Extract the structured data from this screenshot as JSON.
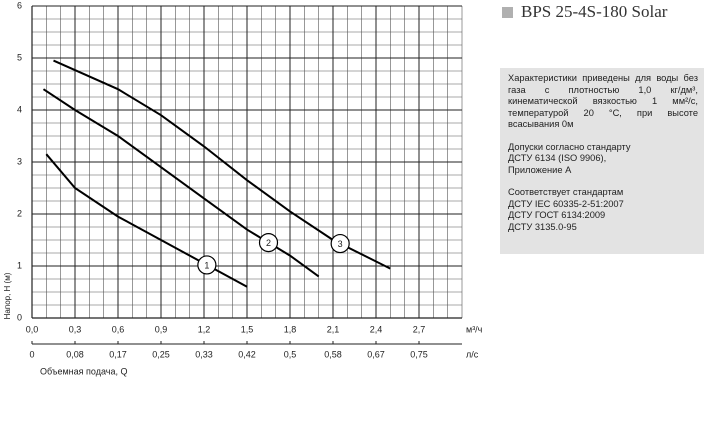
{
  "chart_data": {
    "type": "line",
    "y_label": "Напор, H (м)",
    "x_label": "Объемная подача, Q",
    "x_unit": "м³/ч",
    "x2_unit": "л/с",
    "xlim": [
      0,
      3.0
    ],
    "ylim": [
      0,
      6
    ],
    "xticks": [
      {
        "value": 0,
        "label": "0,0"
      },
      {
        "value": 0.3,
        "label": "0,3"
      },
      {
        "value": 0.6,
        "label": "0,6"
      },
      {
        "value": 0.9,
        "label": "0,9"
      },
      {
        "value": 1.2,
        "label": "1,2"
      },
      {
        "value": 1.5,
        "label": "1,5"
      },
      {
        "value": 1.8,
        "label": "1,8"
      },
      {
        "value": 2.1,
        "label": "2,1"
      },
      {
        "value": 2.4,
        "label": "2,4"
      },
      {
        "value": 2.7,
        "label": "2,7"
      }
    ],
    "x2ticks": [
      {
        "value": 0,
        "label": "0"
      },
      {
        "value": 0.3,
        "label": "0,08"
      },
      {
        "value": 0.6,
        "label": "0,17"
      },
      {
        "value": 0.9,
        "label": "0,25"
      },
      {
        "value": 1.2,
        "label": "0,33"
      },
      {
        "value": 1.5,
        "label": "0,42"
      },
      {
        "value": 1.8,
        "label": "0,5"
      },
      {
        "value": 2.1,
        "label": "0,58"
      },
      {
        "value": 2.4,
        "label": "0,67"
      },
      {
        "value": 2.7,
        "label": "0,75"
      }
    ],
    "yticks": [
      0,
      1,
      2,
      3,
      4,
      5,
      6
    ],
    "grid": true,
    "minor_grid": {
      "x": 0.1,
      "y": 0.25
    },
    "series": [
      {
        "name": "1",
        "color": "#000000",
        "x": [
          0.1,
          0.3,
          0.6,
          0.9,
          1.2,
          1.5
        ],
        "values": [
          3.15,
          2.5,
          1.95,
          1.5,
          1.05,
          0.6
        ]
      },
      {
        "name": "2",
        "color": "#000000",
        "x": [
          0.08,
          0.3,
          0.6,
          0.9,
          1.2,
          1.5,
          1.8,
          2.0
        ],
        "values": [
          4.4,
          4.0,
          3.5,
          2.9,
          2.3,
          1.7,
          1.2,
          0.8
        ]
      },
      {
        "name": "3",
        "color": "#000000",
        "x": [
          0.15,
          0.6,
          0.9,
          1.2,
          1.5,
          1.8,
          2.1,
          2.5
        ],
        "values": [
          4.95,
          4.4,
          3.9,
          3.3,
          2.65,
          2.05,
          1.5,
          0.95
        ]
      }
    ]
  },
  "header": {
    "title": "BPS 25-4S-180 Solar"
  },
  "notes": {
    "paragraph1": "Характеристики приведены для воды без газа с плотностью 1,0 кг/дм³, кинематической вязкостью 1 мм²/с, температурой 20 °С, при высоте всасывания 0м",
    "paragraph2": [
      "Допуски согласно стандарту",
      "ДСТУ 6134 (ISO 9906),",
      "Приложение А"
    ],
    "paragraph3": [
      "Соответствует стандартам",
      "ДСТУ IEC 60335-2-51:2007",
      "ДСТУ ГОСТ 6134:2009",
      "ДСТУ 3135.0-95"
    ]
  }
}
